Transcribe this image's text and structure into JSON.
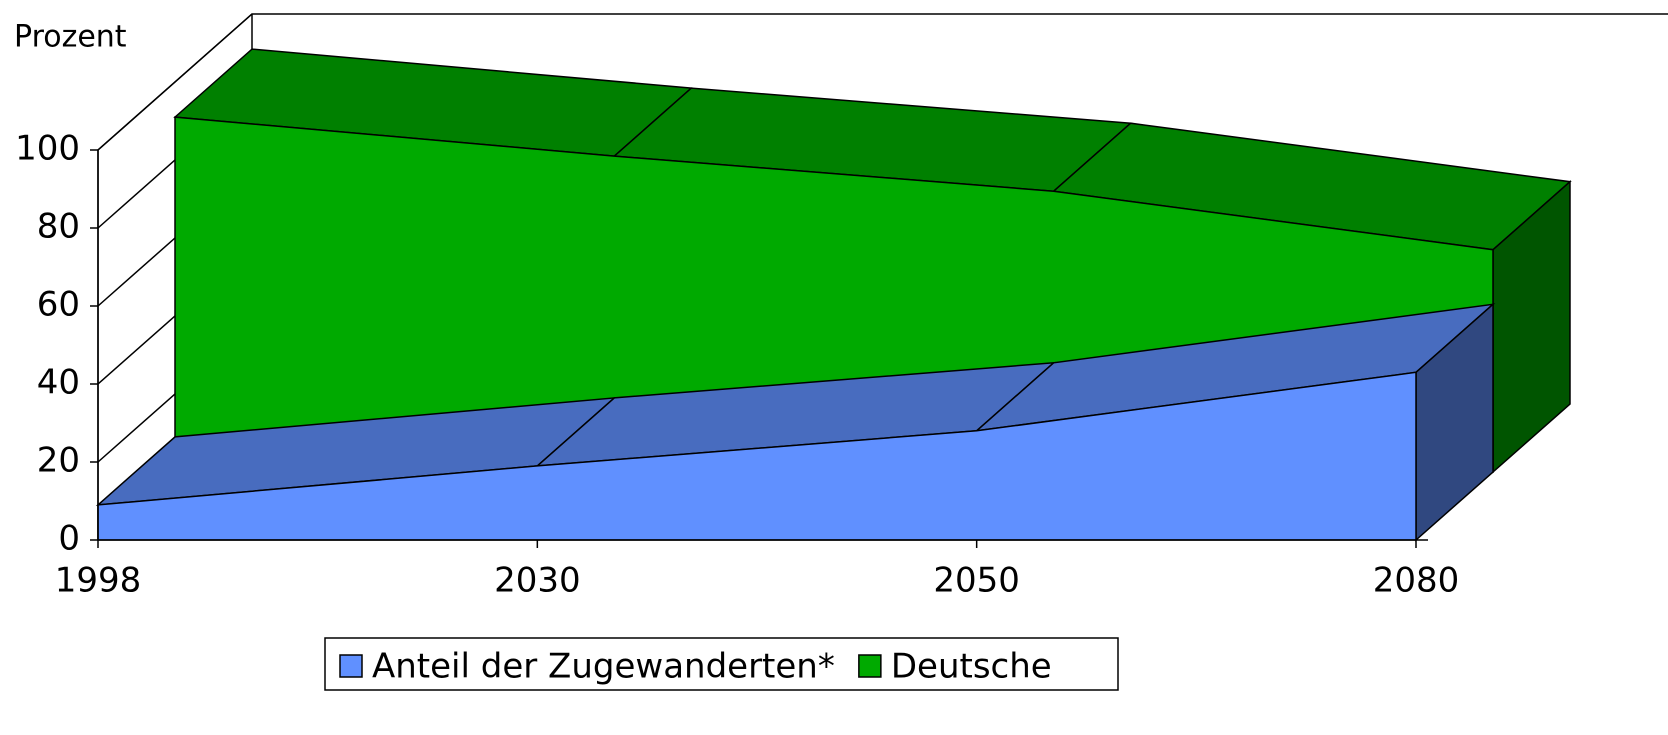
{
  "chart_data": {
    "type": "area3d",
    "y_axis_label": "Prozent",
    "categories": [
      "1998",
      "2030",
      "2050",
      "2080"
    ],
    "series": [
      {
        "name": "Anteil der Zugewanderten*",
        "color": "#6090ff",
        "values": [
          9,
          19,
          28,
          43
        ]
      },
      {
        "name": "Deutsche",
        "color": "#00aa00",
        "values": [
          91,
          81,
          72,
          57
        ]
      }
    ],
    "ylim": [
      0,
      100
    ],
    "yticks": [
      0,
      20,
      40,
      60,
      80,
      100
    ],
    "legend": "bottom"
  }
}
